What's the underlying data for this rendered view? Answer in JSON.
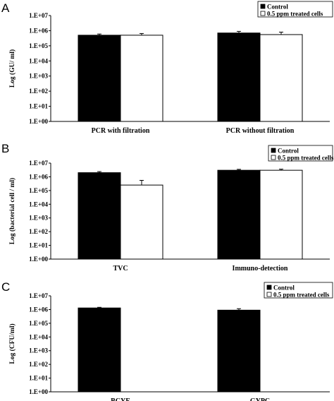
{
  "chart_data": [
    {
      "panel": "A",
      "type": "bar",
      "ylabel": "Log (GU/ ml)",
      "yscale": "log",
      "ylim": [
        1,
        10000000
      ],
      "yticks": [
        "1.E+00",
        "1.E+01",
        "1.E+02",
        "1.E+03",
        "1.E+04",
        "1.E+05",
        "1.E+06",
        "1.E+07"
      ],
      "categories": [
        "PCR with filtration",
        "PCR without filtration"
      ],
      "series": [
        {
          "name": "Control",
          "color": "#000000",
          "values": [
            500000,
            700000
          ],
          "errors": [
            100000,
            200000
          ]
        },
        {
          "name": "0.5 ppm treated cells",
          "color": "#ffffff",
          "values": [
            500000,
            550000
          ],
          "errors": [
            150000,
            250000
          ]
        }
      ],
      "legend": "top-right"
    },
    {
      "panel": "B",
      "type": "bar",
      "ylabel": "Log (bacterial cell / ml)",
      "yscale": "log",
      "ylim": [
        1,
        10000000
      ],
      "yticks": [
        "1.E+00",
        "1.E+01",
        "1.E+02",
        "1.E+03",
        "1.E+04",
        "1.E+05",
        "1.E+06",
        "1.E+07"
      ],
      "categories": [
        "TVC",
        "Immuno-detection"
      ],
      "series": [
        {
          "name": "Control",
          "color": "#000000",
          "values": [
            2000000,
            3000000
          ],
          "errors": [
            400000,
            500000
          ]
        },
        {
          "name": "0.5 ppm treated cells",
          "color": "#ffffff",
          "values": [
            250000,
            3000000
          ],
          "errors": [
            300000,
            600000
          ]
        }
      ],
      "legend": "top-right"
    },
    {
      "panel": "C",
      "type": "bar",
      "ylabel": "Log (CFU/ml)",
      "yscale": "log",
      "ylim": [
        1,
        10000000
      ],
      "yticks": [
        "1.E+00",
        "1.E+01",
        "1.E+02",
        "1.E+03",
        "1.E+04",
        "1.E+05",
        "1.E+06",
        "1.E+07"
      ],
      "categories": [
        "BCYE",
        "GYPC"
      ],
      "series": [
        {
          "name": "Control",
          "color": "#000000",
          "values": [
            1300000,
            900000
          ],
          "errors": [
            150000,
            250000
          ]
        },
        {
          "name": "0.5 ppm treated cells",
          "color": "#ffffff",
          "values": [
            null,
            null
          ],
          "errors": [
            null,
            null
          ]
        }
      ],
      "legend": "top-right"
    }
  ]
}
